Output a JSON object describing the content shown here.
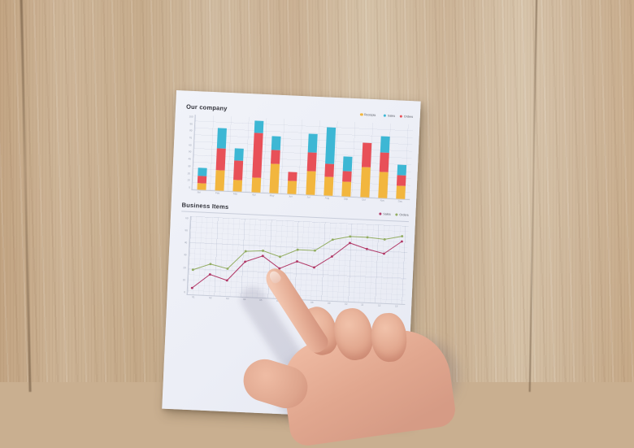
{
  "photo": {
    "paper_tone": "#edeff6",
    "wood_tone": "#cbb296",
    "skin_tone": "#e5ad95"
  },
  "paper": {
    "chart1": {
      "title": "Our company",
      "legend": [
        {
          "label": "Receipts",
          "color": "#f2b63e"
        },
        {
          "label": "Sales",
          "color": "#3db7d4"
        },
        {
          "label": "Orders",
          "color": "#e85058"
        }
      ]
    },
    "chart2": {
      "title": "Business Items",
      "legend": [
        {
          "label": "Sales",
          "color": "#b23a68"
        },
        {
          "label": "Orders",
          "color": "#93ad62"
        }
      ]
    }
  },
  "chart_data": [
    {
      "type": "bar",
      "stacked": true,
      "title": "Our company",
      "categories": [
        "Jan",
        "Feb",
        "Mar",
        "Apr",
        "May",
        "Jun",
        "Jul",
        "Aug",
        "Sep",
        "Oct",
        "Nov",
        "Dec"
      ],
      "series": [
        {
          "name": "Receipts",
          "color": "#f2b63e",
          "stack_position": "bottom",
          "values": [
            10,
            30,
            17,
            22,
            43,
            19,
            35,
            28,
            21,
            44,
            38,
            19
          ]
        },
        {
          "name": "Orders",
          "color": "#e85058",
          "stack_position": "middle",
          "values": [
            10,
            32,
            28,
            65,
            20,
            13,
            27,
            19,
            16,
            36,
            29,
            16
          ]
        },
        {
          "name": "Sales",
          "color": "#3db7d4",
          "stack_position": "top",
          "values": [
            12,
            30,
            19,
            18,
            21,
            0,
            28,
            54,
            22,
            0,
            24,
            15
          ]
        }
      ],
      "ylim": [
        0,
        110
      ],
      "yticks": [
        0,
        10,
        20,
        30,
        40,
        50,
        60,
        70,
        80,
        90,
        100
      ],
      "grid": true,
      "legend_position": "top-right"
    },
    {
      "type": "line",
      "title": "Business Items",
      "x": [
        "01",
        "02",
        "03",
        "04",
        "05",
        "06",
        "07",
        "08",
        "09",
        "10",
        "11",
        "12",
        "13"
      ],
      "series": [
        {
          "name": "Orders",
          "color": "#93ad62",
          "values": [
            19,
            24,
            21,
            35,
            36,
            32,
            38,
            38,
            47,
            50,
            50,
            49,
            52
          ]
        },
        {
          "name": "Sales",
          "color": "#b23a68",
          "values": [
            5,
            16,
            12,
            27,
            32,
            23,
            29,
            25,
            34,
            45,
            41,
            38,
            48
          ]
        }
      ],
      "ylim": [
        0,
        60
      ],
      "yticks": [
        0,
        10,
        20,
        30,
        40,
        50,
        60
      ],
      "grid": "fine",
      "legend_position": "top-right"
    }
  ]
}
